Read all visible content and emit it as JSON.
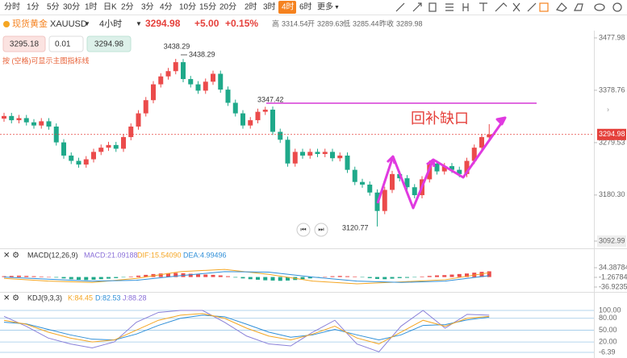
{
  "toolbar": {
    "intervals": [
      "分时",
      "1分",
      "5分",
      "30分",
      "1时",
      "日K",
      "2分",
      "3分",
      "4分",
      "10分",
      "15分",
      "20分",
      "2时",
      "3时",
      "4时",
      "6时",
      "更多"
    ]
  },
  "symbol": {
    "name": "现货黄金",
    "code": "XAUUSD",
    "period": "4小时",
    "price": "3294.98",
    "change": "+5.00",
    "pct": "+0.15%",
    "high_label": "高",
    "high": "3314.54",
    "open_label": "开",
    "open": "3289.63",
    "low_label": "低",
    "low": "3285.44",
    "prev_label": "昨收",
    "prev": "3289.98"
  },
  "order": {
    "sell": "3295.18",
    "qty": "0.01",
    "buy": "3294.98"
  },
  "hint": "按 (空格)可显示主图指标线",
  "main": {
    "ylim": [
      3092.99,
      3477.98
    ],
    "yticks": [
      3477.98,
      3378.76,
      3279.53,
      {
        "value": 3180.3,
        "label": "3180.30"
      },
      3092.99
    ],
    "last": 3294.98,
    "marks": [
      "3438.29",
      "3438.29",
      "3347.42",
      "3120.77"
    ],
    "annotation": "回补缺口",
    "candles": [
      [
        3325,
        3336,
        3319,
        3330
      ],
      [
        3330,
        3336,
        3316,
        3322
      ],
      [
        3322,
        3332,
        3316,
        3326
      ],
      [
        3326,
        3332,
        3312,
        3318
      ],
      [
        3318,
        3324,
        3306,
        3312
      ],
      [
        3312,
        3326,
        3306,
        3320
      ],
      [
        3320,
        3326,
        3304,
        3310
      ],
      [
        3310,
        3316,
        3274,
        3280
      ],
      [
        3280,
        3286,
        3249,
        3255
      ],
      [
        3255,
        3261,
        3239,
        3245
      ],
      [
        3245,
        3251,
        3232,
        3238
      ],
      [
        3238,
        3254,
        3232,
        3248
      ],
      [
        3248,
        3268,
        3242,
        3262
      ],
      [
        3262,
        3276,
        3256,
        3270
      ],
      [
        3270,
        3281,
        3264,
        3275
      ],
      [
        3275,
        3281,
        3262,
        3268
      ],
      [
        3268,
        3296,
        3262,
        3290
      ],
      [
        3290,
        3316,
        3284,
        3310
      ],
      [
        3310,
        3341,
        3304,
        3335
      ],
      [
        3335,
        3366,
        3329,
        3360
      ],
      [
        3360,
        3396,
        3354,
        3390
      ],
      [
        3390,
        3411,
        3384,
        3405
      ],
      [
        3405,
        3421,
        3399,
        3415
      ],
      [
        3415,
        3438.29,
        3409,
        3432
      ],
      [
        3432,
        3438,
        3394,
        3400
      ],
      [
        3400,
        3406,
        3384,
        3390
      ],
      [
        3390,
        3396,
        3372,
        3378
      ],
      [
        3378,
        3401,
        3372,
        3395
      ],
      [
        3395,
        3416,
        3389,
        3410
      ],
      [
        3410,
        3416,
        3374,
        3380
      ],
      [
        3380,
        3386,
        3349,
        3355
      ],
      [
        3355,
        3361,
        3329,
        3335
      ],
      [
        3335,
        3341,
        3306,
        3312
      ],
      [
        3312,
        3328,
        3306,
        3322
      ],
      [
        3322,
        3344,
        3316,
        3338
      ],
      [
        3338,
        3347.42,
        3332,
        3342
      ],
      [
        3342,
        3348,
        3294,
        3300
      ],
      [
        3300,
        3306,
        3279,
        3285
      ],
      [
        3285,
        3291,
        3234,
        3240
      ],
      [
        3240,
        3268,
        3234,
        3262
      ],
      [
        3262,
        3268,
        3249,
        3255
      ],
      [
        3255,
        3268,
        3249,
        3262
      ],
      [
        3262,
        3268,
        3252,
        3258
      ],
      [
        3258,
        3268,
        3252,
        3262
      ],
      [
        3262,
        3268,
        3244,
        3250
      ],
      [
        3250,
        3261,
        3244,
        3255
      ],
      [
        3255,
        3261,
        3222,
        3228
      ],
      [
        3228,
        3234,
        3199,
        3205
      ],
      [
        3205,
        3211,
        3194,
        3200
      ],
      [
        3200,
        3206,
        3179,
        3185
      ],
      [
        3185,
        3191,
        3120.77,
        3150
      ],
      [
        3150,
        3196,
        3144,
        3190
      ],
      [
        3190,
        3226,
        3184,
        3220
      ],
      [
        3220,
        3226,
        3206,
        3212
      ],
      [
        3212,
        3218,
        3189,
        3195
      ],
      [
        3195,
        3201,
        3174,
        3180
      ],
      [
        3180,
        3216,
        3174,
        3210
      ],
      [
        3210,
        3246,
        3204,
        3240
      ],
      [
        3240,
        3246,
        3219,
        3225
      ],
      [
        3225,
        3241,
        3219,
        3235
      ],
      [
        3235,
        3241,
        3222,
        3228
      ],
      [
        3228,
        3234,
        3214,
        3220
      ],
      [
        3220,
        3251,
        3214,
        3245
      ],
      [
        3245,
        3276,
        3239,
        3270
      ],
      [
        3270,
        3296,
        3264,
        3290
      ],
      [
        3289.63,
        3314.54,
        3285.44,
        3294.98
      ]
    ]
  },
  "macd": {
    "title": "MACD(12,26,9)",
    "macd": "MACD:21.09188",
    "dif": "DIF:15.54090",
    "dea": "DEA:4.99496",
    "ylim": [
      -36.92352,
      34.38784
    ],
    "yticks": [
      34.38784,
      -1.26784,
      -36.92352
    ],
    "bars": [
      3,
      4,
      5,
      4,
      3,
      2,
      0,
      -2,
      -5,
      -8,
      -10,
      -11,
      -10,
      -8,
      -6,
      -4,
      -1,
      2,
      5,
      8,
      11,
      13,
      14,
      15,
      14,
      12,
      10,
      9,
      8,
      6,
      3,
      -2,
      -5,
      -8,
      -10,
      -12,
      -13,
      -14,
      -13,
      -11,
      -8,
      -5,
      -2,
      1,
      3,
      4,
      3,
      2,
      -1,
      -4,
      -7,
      -8,
      -6,
      -4,
      -3,
      -1,
      2,
      4,
      6,
      7,
      9,
      11,
      13,
      16,
      19,
      21
    ],
    "dif_line": [
      -5,
      -15,
      -20,
      -5,
      20,
      28,
      10,
      -15,
      -25,
      -18,
      -10,
      16
    ],
    "dea_line": [
      0,
      -8,
      -15,
      -12,
      5,
      20,
      18,
      0,
      -15,
      -20,
      -15,
      5
    ]
  },
  "kdj": {
    "title": "KDJ(9,3,3)",
    "k": "K:84.45",
    "d": "D:82.53",
    "j": "J:88.28",
    "ylim": [
      -6.39,
      100
    ],
    "yticks": [
      {
        "value": 100,
        "label": "100.00"
      },
      {
        "value": 80,
        "label": "80.00"
      },
      {
        "value": 50,
        "label": "50.00"
      },
      {
        "value": 20,
        "label": "20.00"
      },
      -6.39
    ],
    "k_line": [
      75,
      65,
      45,
      30,
      20,
      25,
      50,
      75,
      88,
      92,
      80,
      55,
      35,
      25,
      40,
      60,
      30,
      15,
      45,
      75,
      60,
      80,
      85
    ],
    "d_line": [
      70,
      66,
      52,
      38,
      27,
      25,
      40,
      62,
      80,
      88,
      84,
      65,
      45,
      32,
      38,
      52,
      38,
      25,
      38,
      62,
      64,
      76,
      83
    ],
    "j_line": [
      85,
      60,
      30,
      15,
      5,
      20,
      70,
      95,
      100,
      100,
      70,
      35,
      15,
      10,
      45,
      75,
      15,
      -5,
      60,
      100,
      55,
      90,
      88
    ]
  }
}
